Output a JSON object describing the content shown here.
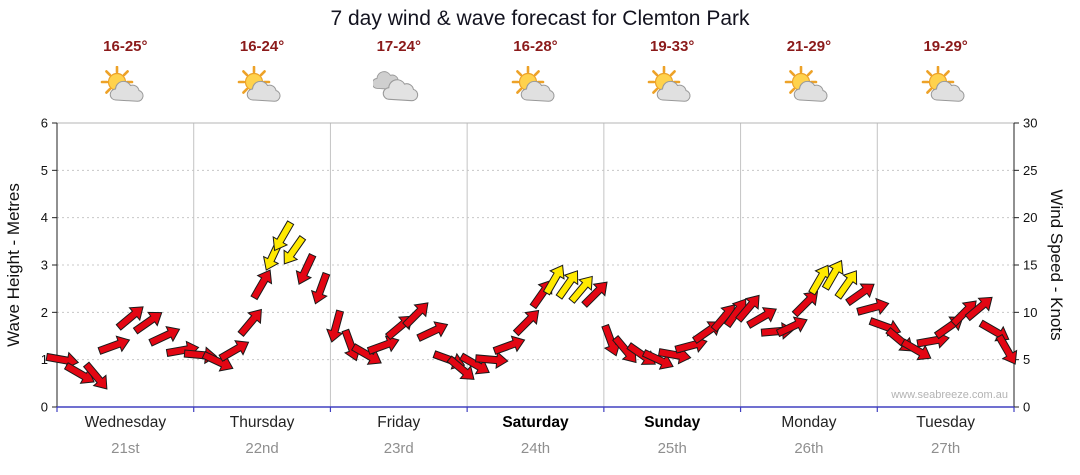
{
  "title": "7 day wind & wave forecast for Clemton Park",
  "watermark": "www.seabreeze.com.au",
  "colors": {
    "arrow_red": "#e30613",
    "arrow_yellow": "#ffe900",
    "arrow_outline": "#1a1a1a",
    "temp_text": "#8b1a1a",
    "axis_blue": "#4040c0",
    "grid": "#c8c8c8",
    "separator": "#c4c4c4",
    "axis_black": "#222222",
    "date_text": "#8f8f8f"
  },
  "days": [
    {
      "name": "Wednesday",
      "date": "21st",
      "temp": "16-25°",
      "icon": "sun-cloud",
      "weekend": false
    },
    {
      "name": "Thursday",
      "date": "22nd",
      "temp": "16-24°",
      "icon": "sun-cloud",
      "weekend": false
    },
    {
      "name": "Friday",
      "date": "23rd",
      "temp": "17-24°",
      "icon": "clouds",
      "weekend": false
    },
    {
      "name": "Saturday",
      "date": "24th",
      "temp": "16-28°",
      "icon": "sun-cloud",
      "weekend": true
    },
    {
      "name": "Sunday",
      "date": "25th",
      "temp": "19-33°",
      "icon": "sun-cloud",
      "weekend": true
    },
    {
      "name": "Monday",
      "date": "26th",
      "temp": "21-29°",
      "icon": "sun-cloud",
      "weekend": false
    },
    {
      "name": "Tuesday",
      "date": "27th",
      "temp": "19-29°",
      "icon": "sun-cloud",
      "weekend": false
    }
  ],
  "left_axis": {
    "label": "Wave Height - Metres",
    "min": 0,
    "max": 6,
    "ticks": [
      0,
      1,
      2,
      3,
      4,
      5,
      6
    ]
  },
  "right_axis": {
    "label": "Wind Speed - Knots",
    "min": 0,
    "max": 30,
    "ticks": [
      0,
      5,
      10,
      15,
      20,
      25,
      30
    ]
  },
  "chart_data": {
    "type": "wind-arrows",
    "x_unit": "days from start of Wednesday 21st (0-7)",
    "speed_unit": "knots (right axis)",
    "point_format": [
      "x_days",
      "wind_speed_knots",
      "arrow_direction_deg_cw_from_up",
      "color R=red Y=yellow"
    ],
    "legend_note": "yellow arrows mark the strongest wind periods",
    "points": [
      [
        0.04,
        5,
        100,
        "R"
      ],
      [
        0.17,
        3.5,
        120,
        "R"
      ],
      [
        0.29,
        3.2,
        140,
        "R"
      ],
      [
        0.42,
        6.5,
        70,
        "R"
      ],
      [
        0.54,
        9.5,
        50,
        "R"
      ],
      [
        0.67,
        9,
        55,
        "R"
      ],
      [
        0.79,
        7.5,
        65,
        "R"
      ],
      [
        0.92,
        6,
        80,
        "R"
      ],
      [
        1.05,
        5.5,
        95,
        "R"
      ],
      [
        1.18,
        4.8,
        115,
        "R"
      ],
      [
        1.3,
        6,
        60,
        "R"
      ],
      [
        1.42,
        9,
        40,
        "R"
      ],
      [
        1.5,
        13,
        30,
        "R"
      ],
      [
        1.58,
        16,
        205,
        "Y"
      ],
      [
        1.65,
        18,
        210,
        "Y"
      ],
      [
        1.73,
        16.5,
        215,
        "Y"
      ],
      [
        1.82,
        14.5,
        205,
        "R"
      ],
      [
        1.93,
        12.5,
        200,
        "R"
      ],
      [
        2.04,
        8.5,
        195,
        "R"
      ],
      [
        2.15,
        6.5,
        160,
        "R"
      ],
      [
        2.27,
        5.5,
        120,
        "R"
      ],
      [
        2.39,
        6.5,
        70,
        "R"
      ],
      [
        2.51,
        8.5,
        50,
        "R"
      ],
      [
        2.63,
        9.8,
        45,
        "R"
      ],
      [
        2.75,
        8,
        65,
        "R"
      ],
      [
        2.87,
        5,
        110,
        "R"
      ],
      [
        2.96,
        4,
        130,
        "R"
      ],
      [
        3.06,
        4.5,
        120,
        "R"
      ],
      [
        3.18,
        5,
        95,
        "R"
      ],
      [
        3.31,
        6.5,
        70,
        "R"
      ],
      [
        3.44,
        9,
        45,
        "R"
      ],
      [
        3.55,
        12,
        35,
        "R"
      ],
      [
        3.64,
        13.5,
        30,
        "Y"
      ],
      [
        3.74,
        13,
        35,
        "Y"
      ],
      [
        3.84,
        12.5,
        40,
        "Y"
      ],
      [
        3.94,
        12,
        45,
        "R"
      ],
      [
        4.05,
        7,
        160,
        "R"
      ],
      [
        4.16,
        6,
        140,
        "R"
      ],
      [
        4.28,
        5.5,
        125,
        "R"
      ],
      [
        4.4,
        5,
        115,
        "R"
      ],
      [
        4.52,
        5.5,
        100,
        "R"
      ],
      [
        4.64,
        6.5,
        75,
        "R"
      ],
      [
        4.76,
        8,
        55,
        "R"
      ],
      [
        4.88,
        9.5,
        40,
        "R"
      ],
      [
        4.97,
        10,
        35,
        "R"
      ],
      [
        5.06,
        10.5,
        40,
        "R"
      ],
      [
        5.16,
        9.5,
        60,
        "R"
      ],
      [
        5.27,
        8,
        85,
        "R"
      ],
      [
        5.38,
        8.5,
        65,
        "R"
      ],
      [
        5.48,
        11,
        45,
        "R"
      ],
      [
        5.58,
        13.5,
        30,
        "Y"
      ],
      [
        5.68,
        14,
        30,
        "Y"
      ],
      [
        5.78,
        13,
        35,
        "Y"
      ],
      [
        5.88,
        12,
        55,
        "R"
      ],
      [
        5.97,
        10.5,
        75,
        "R"
      ],
      [
        6.06,
        8.5,
        110,
        "R"
      ],
      [
        6.17,
        7,
        130,
        "R"
      ],
      [
        6.29,
        6,
        120,
        "R"
      ],
      [
        6.41,
        7,
        80,
        "R"
      ],
      [
        6.53,
        8.5,
        55,
        "R"
      ],
      [
        6.64,
        10,
        45,
        "R"
      ],
      [
        6.75,
        10.5,
        50,
        "R"
      ],
      [
        6.86,
        8,
        120,
        "R"
      ],
      [
        6.95,
        6,
        150,
        "R"
      ]
    ]
  }
}
